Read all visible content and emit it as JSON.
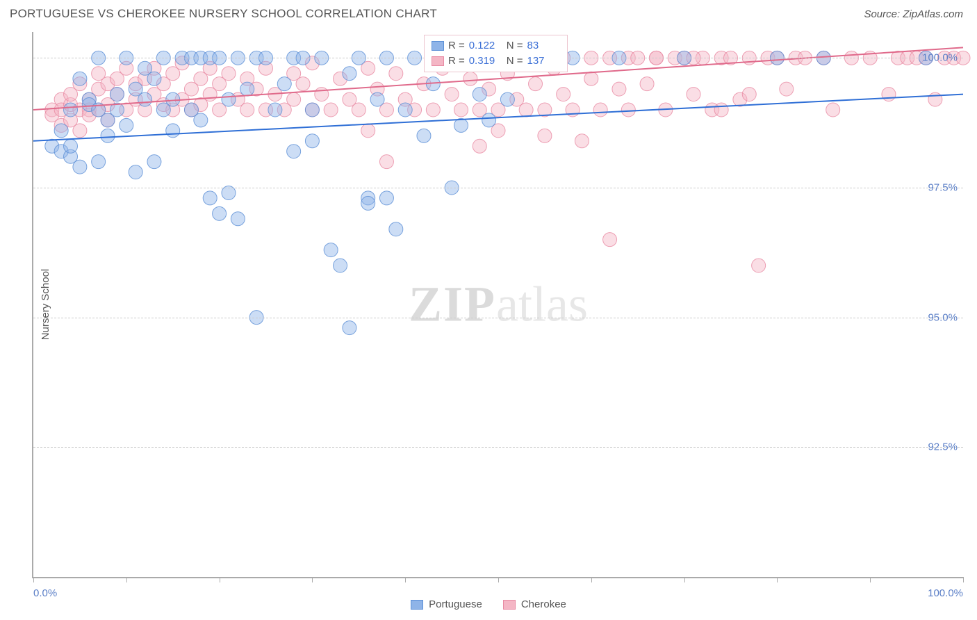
{
  "title": "PORTUGUESE VS CHEROKEE NURSERY SCHOOL CORRELATION CHART",
  "source": "Source: ZipAtlas.com",
  "watermark": {
    "zip": "ZIP",
    "atlas": "atlas"
  },
  "y_axis_title": "Nursery School",
  "x_axis": {
    "min": 0.0,
    "max": 100.0,
    "label_left": "0.0%",
    "label_right": "100.0%",
    "tick_positions": [
      0,
      10,
      20,
      30,
      40,
      50,
      60,
      70,
      80,
      90,
      100
    ]
  },
  "y_axis": {
    "min": 90.0,
    "max": 100.5,
    "gridlines": [
      92.5,
      95.0,
      97.5,
      100.0
    ],
    "grid_labels": [
      "92.5%",
      "95.0%",
      "97.5%",
      "100.0%"
    ]
  },
  "chart": {
    "type": "scatter",
    "background_color": "#ffffff",
    "grid_color": "#cccccc",
    "axis_color": "#aaaaaa",
    "marker_radius": 10,
    "series": [
      {
        "name": "Portuguese",
        "fill": "#8fb4e8",
        "stroke": "#5b8fd6",
        "R": "0.122",
        "N": "83",
        "trend": {
          "y_at_x0": 98.4,
          "y_at_x100": 99.3,
          "color": "#2f6fd6",
          "width": 2
        },
        "points": [
          [
            2,
            98.3
          ],
          [
            3,
            98.2
          ],
          [
            3,
            98.6
          ],
          [
            4,
            98.1
          ],
          [
            4,
            98.3
          ],
          [
            4,
            99.0
          ],
          [
            5,
            97.9
          ],
          [
            5,
            99.6
          ],
          [
            6,
            99.2
          ],
          [
            6,
            99.1
          ],
          [
            7,
            98.0
          ],
          [
            7,
            99.0
          ],
          [
            7,
            100.0
          ],
          [
            8,
            98.5
          ],
          [
            8,
            98.8
          ],
          [
            9,
            99.0
          ],
          [
            9,
            99.3
          ],
          [
            10,
            100.0
          ],
          [
            10,
            98.7
          ],
          [
            11,
            99.4
          ],
          [
            11,
            97.8
          ],
          [
            12,
            99.8
          ],
          [
            12,
            99.2
          ],
          [
            13,
            98.0
          ],
          [
            13,
            99.6
          ],
          [
            14,
            100.0
          ],
          [
            14,
            99.0
          ],
          [
            15,
            99.2
          ],
          [
            15,
            98.6
          ],
          [
            16,
            100.0
          ],
          [
            17,
            99.0
          ],
          [
            17,
            100.0
          ],
          [
            18,
            100.0
          ],
          [
            18,
            98.8
          ],
          [
            19,
            100.0
          ],
          [
            19,
            97.3
          ],
          [
            20,
            97.0
          ],
          [
            20,
            100.0
          ],
          [
            21,
            99.2
          ],
          [
            21,
            97.4
          ],
          [
            22,
            96.9
          ],
          [
            22,
            100.0
          ],
          [
            23,
            99.4
          ],
          [
            24,
            95.0
          ],
          [
            24,
            100.0
          ],
          [
            25,
            100.0
          ],
          [
            26,
            99.0
          ],
          [
            27,
            99.5
          ],
          [
            28,
            100.0
          ],
          [
            28,
            98.2
          ],
          [
            29,
            100.0
          ],
          [
            30,
            99.0
          ],
          [
            30,
            98.4
          ],
          [
            31,
            100.0
          ],
          [
            32,
            96.3
          ],
          [
            33,
            96.0
          ],
          [
            34,
            99.7
          ],
          [
            34,
            94.8
          ],
          [
            35,
            100.0
          ],
          [
            36,
            97.3
          ],
          [
            36,
            97.2
          ],
          [
            37,
            99.2
          ],
          [
            38,
            100.0
          ],
          [
            38,
            97.3
          ],
          [
            39,
            96.7
          ],
          [
            40,
            99.0
          ],
          [
            41,
            100.0
          ],
          [
            42,
            98.5
          ],
          [
            43,
            99.5
          ],
          [
            44,
            100.0
          ],
          [
            45,
            97.5
          ],
          [
            46,
            98.7
          ],
          [
            47,
            100.0
          ],
          [
            48,
            99.3
          ],
          [
            49,
            98.8
          ],
          [
            50,
            100.0
          ],
          [
            51,
            99.2
          ],
          [
            58,
            100.0
          ],
          [
            63,
            100.0
          ],
          [
            70,
            100.0
          ],
          [
            80,
            100.0
          ],
          [
            85,
            100.0
          ],
          [
            96,
            100.0
          ]
        ]
      },
      {
        "name": "Cherokee",
        "fill": "#f4b6c5",
        "stroke": "#e88aa3",
        "R": "0.319",
        "N": "137",
        "trend": {
          "y_at_x0": 99.0,
          "y_at_x100": 100.2,
          "color": "#e06a8b",
          "width": 2
        },
        "points": [
          [
            2,
            99.0
          ],
          [
            2,
            98.9
          ],
          [
            3,
            99.2
          ],
          [
            3,
            99.0
          ],
          [
            3,
            98.7
          ],
          [
            4,
            99.1
          ],
          [
            4,
            99.3
          ],
          [
            4,
            98.8
          ],
          [
            5,
            99.5
          ],
          [
            5,
            99.0
          ],
          [
            5,
            98.6
          ],
          [
            6,
            99.0
          ],
          [
            6,
            99.2
          ],
          [
            6,
            98.9
          ],
          [
            7,
            99.4
          ],
          [
            7,
            99.7
          ],
          [
            7,
            99.0
          ],
          [
            8,
            99.1
          ],
          [
            8,
            99.5
          ],
          [
            8,
            98.8
          ],
          [
            9,
            99.3
          ],
          [
            9,
            99.6
          ],
          [
            10,
            99.0
          ],
          [
            10,
            99.8
          ],
          [
            11,
            99.2
          ],
          [
            11,
            99.5
          ],
          [
            12,
            99.0
          ],
          [
            12,
            99.6
          ],
          [
            13,
            99.3
          ],
          [
            13,
            99.8
          ],
          [
            14,
            99.1
          ],
          [
            14,
            99.5
          ],
          [
            15,
            99.0
          ],
          [
            15,
            99.7
          ],
          [
            16,
            99.2
          ],
          [
            16,
            99.9
          ],
          [
            17,
            99.4
          ],
          [
            17,
            99.0
          ],
          [
            18,
            99.6
          ],
          [
            18,
            99.1
          ],
          [
            19,
            99.3
          ],
          [
            19,
            99.8
          ],
          [
            20,
            99.0
          ],
          [
            20,
            99.5
          ],
          [
            21,
            99.7
          ],
          [
            22,
            99.2
          ],
          [
            23,
            99.0
          ],
          [
            23,
            99.6
          ],
          [
            24,
            99.4
          ],
          [
            25,
            99.0
          ],
          [
            25,
            99.8
          ],
          [
            26,
            99.3
          ],
          [
            27,
            99.0
          ],
          [
            28,
            99.7
          ],
          [
            28,
            99.2
          ],
          [
            29,
            99.5
          ],
          [
            30,
            99.0
          ],
          [
            30,
            99.9
          ],
          [
            31,
            99.3
          ],
          [
            32,
            99.0
          ],
          [
            33,
            99.6
          ],
          [
            34,
            99.2
          ],
          [
            35,
            99.0
          ],
          [
            36,
            99.8
          ],
          [
            36,
            98.6
          ],
          [
            37,
            99.4
          ],
          [
            38,
            99.0
          ],
          [
            38,
            98.0
          ],
          [
            39,
            99.7
          ],
          [
            40,
            99.2
          ],
          [
            41,
            99.0
          ],
          [
            42,
            99.5
          ],
          [
            43,
            99.0
          ],
          [
            44,
            99.8
          ],
          [
            45,
            99.3
          ],
          [
            46,
            99.0
          ],
          [
            47,
            99.6
          ],
          [
            48,
            99.0
          ],
          [
            48,
            98.3
          ],
          [
            49,
            99.4
          ],
          [
            50,
            99.0
          ],
          [
            50,
            98.6
          ],
          [
            51,
            99.7
          ],
          [
            52,
            99.2
          ],
          [
            53,
            99.0
          ],
          [
            54,
            99.5
          ],
          [
            55,
            99.0
          ],
          [
            55,
            98.5
          ],
          [
            56,
            99.8
          ],
          [
            57,
            99.3
          ],
          [
            57,
            100.0
          ],
          [
            58,
            99.0
          ],
          [
            59,
            98.4
          ],
          [
            60,
            99.6
          ],
          [
            60,
            100.0
          ],
          [
            61,
            99.0
          ],
          [
            62,
            96.5
          ],
          [
            62,
            100.0
          ],
          [
            63,
            99.4
          ],
          [
            64,
            100.0
          ],
          [
            65,
            100.0
          ],
          [
            66,
            99.5
          ],
          [
            67,
            100.0
          ],
          [
            68,
            99.0
          ],
          [
            69,
            100.0
          ],
          [
            70,
            100.0
          ],
          [
            71,
            99.3
          ],
          [
            72,
            100.0
          ],
          [
            73,
            99.0
          ],
          [
            74,
            100.0
          ],
          [
            75,
            100.0
          ],
          [
            76,
            99.2
          ],
          [
            77,
            100.0
          ],
          [
            78,
            96.0
          ],
          [
            79,
            100.0
          ],
          [
            80,
            100.0
          ],
          [
            81,
            99.4
          ],
          [
            82,
            100.0
          ],
          [
            83,
            100.0
          ],
          [
            85,
            100.0
          ],
          [
            86,
            99.0
          ],
          [
            88,
            100.0
          ],
          [
            90,
            100.0
          ],
          [
            92,
            99.3
          ],
          [
            93,
            100.0
          ],
          [
            94,
            100.0
          ],
          [
            95,
            100.0
          ],
          [
            96,
            100.0
          ],
          [
            97,
            99.2
          ],
          [
            98,
            100.0
          ],
          [
            99,
            100.0
          ],
          [
            100,
            100.0
          ],
          [
            67,
            100.0
          ],
          [
            71,
            100.0
          ],
          [
            74,
            99.0
          ],
          [
            77,
            99.3
          ],
          [
            64,
            99.0
          ]
        ]
      }
    ]
  },
  "legend_top_labels": {
    "R": "R =",
    "N": "N ="
  },
  "bottom_legend": [
    "Portuguese",
    "Cherokee"
  ]
}
